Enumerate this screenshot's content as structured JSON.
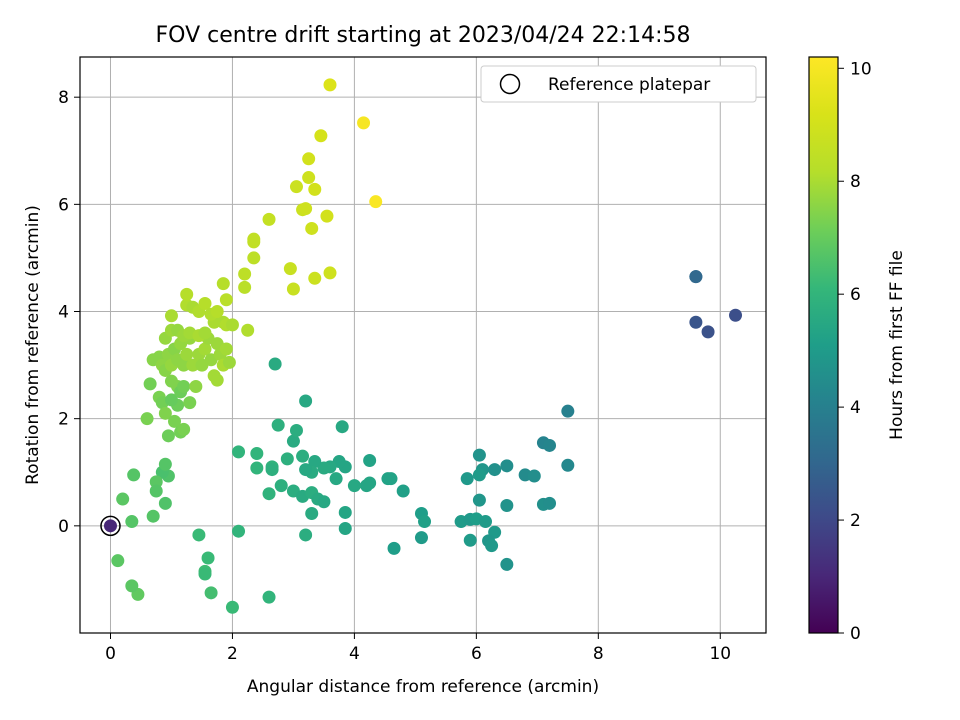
{
  "chart_data": {
    "type": "scatter",
    "title": "FOV centre drift starting at 2023/04/24 22:14:58",
    "xlabel": "Angular distance from reference (arcmin)",
    "ylabel": "Rotation from reference (arcmin)",
    "xlim": [
      -0.5,
      10.75
    ],
    "ylim": [
      -2.0,
      8.75
    ],
    "xticks": [
      "0",
      "2",
      "4",
      "6",
      "8",
      "10"
    ],
    "xtick_values": [
      0,
      2,
      4,
      6,
      8,
      10
    ],
    "yticks": [
      "0",
      "2",
      "4",
      "6",
      "8"
    ],
    "ytick_values": [
      0,
      2,
      4,
      6,
      8
    ],
    "grid": true,
    "legend": {
      "position": "top-right",
      "entries": [
        "Reference platepar"
      ]
    },
    "colorbar": {
      "label": "Hours from first FF file",
      "colormap": "viridis",
      "range": [
        0,
        10.2
      ],
      "ticks": [
        "0",
        "2",
        "4",
        "6",
        "8",
        "10"
      ],
      "tick_values": [
        0,
        2,
        4,
        6,
        8,
        10
      ]
    },
    "reference_point": {
      "x": 0,
      "y": 0
    },
    "points": [
      [
        0,
        0,
        1.0
      ],
      [
        9.6,
        4.65,
        3.2
      ],
      [
        9.6,
        4.65,
        3.1
      ],
      [
        9.6,
        3.8,
        2.4
      ],
      [
        9.8,
        3.62,
        2.3
      ],
      [
        10.25,
        3.93,
        2.2
      ],
      [
        7.5,
        2.14,
        4.0
      ],
      [
        7.1,
        1.55,
        4.1
      ],
      [
        7.2,
        1.5,
        4.2
      ],
      [
        7.5,
        1.13,
        4.3
      ],
      [
        6.8,
        0.95,
        4.4
      ],
      [
        6.95,
        0.93,
        4.5
      ],
      [
        7.1,
        0.4,
        4.6
      ],
      [
        7.2,
        0.42,
        4.5
      ],
      [
        6.05,
        1.32,
        4.7
      ],
      [
        6.1,
        1.05,
        4.8
      ],
      [
        6.3,
        1.05,
        4.6
      ],
      [
        6.5,
        1.12,
        4.5
      ],
      [
        5.85,
        0.88,
        4.9
      ],
      [
        6.05,
        0.95,
        5.0
      ],
      [
        6.05,
        0.48,
        4.8
      ],
      [
        6.5,
        0.38,
        4.7
      ],
      [
        5.75,
        0.08,
        5.0
      ],
      [
        5.9,
        0.12,
        4.9
      ],
      [
        6.0,
        0.13,
        5.1
      ],
      [
        6.15,
        0.08,
        5.0
      ],
      [
        6.3,
        -0.12,
        4.9
      ],
      [
        6.2,
        -0.28,
        4.8
      ],
      [
        6.25,
        -0.37,
        4.9
      ],
      [
        5.9,
        -0.27,
        5.0
      ],
      [
        6.5,
        -0.72,
        4.7
      ],
      [
        5.1,
        0.23,
        5.1
      ],
      [
        5.15,
        0.08,
        5.2
      ],
      [
        5.1,
        -0.22,
        5.0
      ],
      [
        4.65,
        -0.42,
        5.1
      ],
      [
        4.8,
        0.65,
        5.2
      ],
      [
        4.55,
        0.88,
        5.3
      ],
      [
        4.25,
        0.8,
        5.4
      ],
      [
        4.25,
        1.22,
        5.3
      ],
      [
        4.2,
        0.75,
        5.4
      ],
      [
        4.0,
        0.75,
        5.5
      ],
      [
        3.85,
        1.1,
        5.4
      ],
      [
        3.8,
        1.85,
        5.5
      ],
      [
        3.75,
        1.2,
        5.4
      ],
      [
        3.6,
        1.1,
        5.5
      ],
      [
        3.5,
        1.08,
        5.6
      ],
      [
        3.35,
        1.2,
        5.5
      ],
      [
        3.3,
        1.0,
        5.6
      ],
      [
        3.2,
        1.05,
        5.5
      ],
      [
        3.15,
        1.3,
        5.7
      ],
      [
        3.0,
        1.58,
        5.6
      ],
      [
        3.05,
        1.78,
        5.7
      ],
      [
        3.2,
        2.33,
        5.5
      ],
      [
        2.9,
        1.25,
        5.8
      ],
      [
        2.75,
        1.88,
        5.8
      ],
      [
        2.65,
        1.1,
        5.9
      ],
      [
        2.65,
        1.05,
        5.8
      ],
      [
        2.7,
        3.02,
        5.6
      ],
      [
        2.4,
        1.08,
        6.0
      ],
      [
        2.4,
        1.35,
        6.0
      ],
      [
        2.1,
        1.38,
        6.0
      ],
      [
        2.6,
        0.6,
        5.9
      ],
      [
        2.8,
        0.75,
        5.8
      ],
      [
        3.0,
        0.65,
        5.7
      ],
      [
        3.15,
        0.55,
        5.6
      ],
      [
        3.3,
        0.62,
        5.7
      ],
      [
        3.4,
        0.5,
        5.6
      ],
      [
        3.5,
        0.45,
        5.5
      ],
      [
        3.3,
        0.23,
        5.6
      ],
      [
        3.2,
        -0.17,
        5.7
      ],
      [
        3.85,
        0.25,
        5.4
      ],
      [
        3.85,
        -0.05,
        5.4
      ],
      [
        3.7,
        0.88,
        5.5
      ],
      [
        4.6,
        0.88,
        5.3
      ],
      [
        2.1,
        -0.1,
        6.0
      ],
      [
        1.45,
        -0.17,
        6.2
      ],
      [
        1.6,
        -0.6,
        6.2
      ],
      [
        1.55,
        -0.85,
        6.3
      ],
      [
        1.55,
        -0.9,
        6.2
      ],
      [
        1.65,
        -1.25,
        6.4
      ],
      [
        2.0,
        -1.52,
        6.2
      ],
      [
        2.6,
        -1.33,
        6.0
      ],
      [
        0.45,
        -1.28,
        6.9
      ],
      [
        0.35,
        -1.12,
        6.8
      ],
      [
        0.12,
        -0.65,
        6.8
      ],
      [
        0.35,
        0.08,
        6.7
      ],
      [
        0.2,
        0.5,
        6.8
      ],
      [
        0.7,
        0.18,
        6.7
      ],
      [
        0.9,
        0.42,
        6.6
      ],
      [
        0.95,
        0.93,
        6.6
      ],
      [
        0.85,
        1.0,
        6.5
      ],
      [
        0.9,
        1.15,
        6.7
      ],
      [
        0.75,
        0.82,
        6.8
      ],
      [
        0.75,
        0.65,
        6.7
      ],
      [
        0.38,
        0.95,
        6.7
      ],
      [
        0.65,
        2.65,
        7.2
      ],
      [
        0.6,
        2.0,
        7.3
      ],
      [
        0.8,
        2.4,
        7.3
      ],
      [
        0.85,
        2.3,
        7.2
      ],
      [
        0.9,
        2.1,
        7.4
      ],
      [
        0.95,
        1.68,
        7.1
      ],
      [
        1.05,
        1.95,
        7.3
      ],
      [
        1.1,
        2.25,
        7.1
      ],
      [
        1.15,
        1.75,
        7.2
      ],
      [
        1.2,
        1.8,
        7.3
      ],
      [
        1.3,
        2.3,
        7.3
      ],
      [
        1.1,
        2.6,
        7.4
      ],
      [
        1.0,
        2.35,
        7.0
      ],
      [
        1.15,
        2.5,
        7.1
      ],
      [
        1.2,
        2.6,
        7.2
      ],
      [
        1.0,
        2.7,
        7.4
      ],
      [
        0.7,
        3.1,
        7.5
      ],
      [
        0.8,
        3.15,
        7.5
      ],
      [
        0.85,
        3.0,
        7.6
      ],
      [
        0.9,
        2.9,
        7.5
      ],
      [
        0.95,
        3.2,
        7.6
      ],
      [
        1.0,
        3.0,
        7.7
      ],
      [
        1.05,
        3.3,
        7.5
      ],
      [
        1.1,
        3.1,
        7.6
      ],
      [
        1.15,
        3.4,
        7.7
      ],
      [
        1.2,
        3.0,
        7.6
      ],
      [
        1.25,
        3.2,
        7.8
      ],
      [
        1.3,
        3.5,
        7.7
      ],
      [
        1.35,
        3.0,
        7.8
      ],
      [
        1.4,
        2.6,
        7.6
      ],
      [
        1.45,
        3.2,
        7.8
      ],
      [
        1.5,
        3.0,
        7.7
      ],
      [
        1.55,
        3.3,
        7.9
      ],
      [
        1.6,
        3.5,
        7.8
      ],
      [
        1.65,
        3.1,
        7.7
      ],
      [
        1.7,
        2.8,
        7.9
      ],
      [
        1.75,
        3.4,
        7.8
      ],
      [
        1.8,
        3.2,
        7.8
      ],
      [
        1.85,
        3.0,
        8.0
      ],
      [
        1.9,
        3.3,
        7.9
      ],
      [
        1.95,
        3.05,
        7.8
      ],
      [
        0.9,
        3.5,
        7.7
      ],
      [
        1.0,
        3.65,
        7.8
      ],
      [
        1.1,
        3.65,
        7.7
      ],
      [
        1.2,
        3.55,
        7.8
      ],
      [
        1.3,
        3.6,
        7.9
      ],
      [
        1.45,
        3.55,
        8.0
      ],
      [
        1.55,
        3.6,
        7.9
      ],
      [
        1.7,
        3.8,
        8.0
      ],
      [
        1.85,
        3.8,
        8.0
      ],
      [
        1.9,
        3.75,
        8.1
      ],
      [
        2.0,
        3.75,
        8.0
      ],
      [
        2.25,
        3.65,
        8.1
      ],
      [
        1.0,
        3.92,
        8.0
      ],
      [
        1.25,
        4.12,
        8.1
      ],
      [
        1.35,
        4.08,
        8.0
      ],
      [
        1.45,
        4.0,
        8.1
      ],
      [
        1.55,
        4.15,
        8.2
      ],
      [
        1.65,
        3.95,
        8.1
      ],
      [
        1.75,
        4.0,
        8.2
      ],
      [
        1.85,
        4.52,
        8.2
      ],
      [
        1.9,
        4.22,
        8.3
      ],
      [
        1.25,
        4.32,
        8.2
      ],
      [
        1.75,
        2.72,
        7.9
      ],
      [
        2.2,
        4.45,
        8.3
      ],
      [
        2.2,
        4.7,
        8.4
      ],
      [
        2.35,
        5.0,
        8.4
      ],
      [
        2.35,
        5.3,
        8.5
      ],
      [
        2.35,
        5.35,
        8.5
      ],
      [
        2.6,
        5.72,
        8.6
      ],
      [
        2.95,
        4.8,
        8.7
      ],
      [
        3.0,
        4.42,
        8.7
      ],
      [
        3.05,
        6.33,
        8.8
      ],
      [
        3.15,
        5.9,
        8.8
      ],
      [
        3.2,
        5.92,
        8.9
      ],
      [
        3.25,
        6.5,
        8.9
      ],
      [
        3.25,
        6.85,
        9.0
      ],
      [
        3.3,
        5.55,
        8.9
      ],
      [
        3.35,
        4.62,
        8.8
      ],
      [
        3.35,
        6.28,
        9.0
      ],
      [
        3.45,
        7.28,
        9.1
      ],
      [
        3.55,
        5.78,
        9.0
      ],
      [
        3.6,
        4.72,
        8.9
      ],
      [
        3.6,
        8.23,
        9.3
      ],
      [
        4.15,
        7.52,
        10.0
      ],
      [
        4.35,
        6.05,
        10.1
      ]
    ]
  }
}
